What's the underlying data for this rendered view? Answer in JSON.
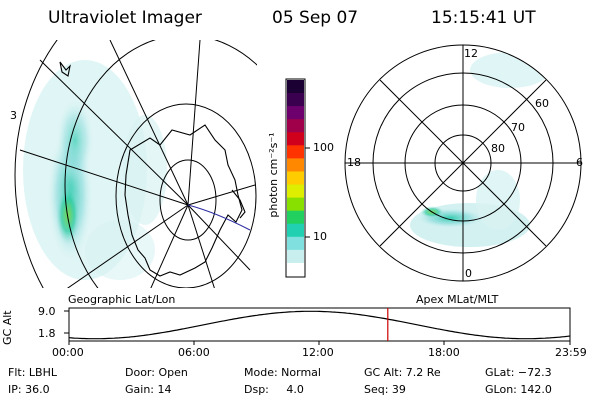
{
  "header": {
    "instrument": "Ultraviolet Imager",
    "date": "05 Sep 07",
    "time": "15:15:41 UT"
  },
  "geo_panel": {
    "label": "Geographic Lat/Lon",
    "corner_mark": "3"
  },
  "apex_panel": {
    "label": "Apex MLat/MLT",
    "mlt_labels": [
      "12",
      "18",
      "6",
      "0"
    ],
    "mlat_labels": [
      "60",
      "70",
      "80"
    ]
  },
  "colorbar": {
    "unit_label": "photon cm⁻²s⁻¹",
    "ticks": [
      {
        "label": "100",
        "value": 100
      },
      {
        "label": "10",
        "value": 10
      }
    ],
    "scale": "log",
    "colors": [
      "#1a0033",
      "#3a004f",
      "#6e006e",
      "#a0004a",
      "#d0001c",
      "#ff3300",
      "#ff8800",
      "#ffcc00",
      "#ddee00",
      "#88e000",
      "#22d060",
      "#20d0b0",
      "#80e0e0",
      "#c8eeee",
      "#ffffff"
    ]
  },
  "altitude_plot": {
    "ylabel": "GC Alt",
    "yticks": [
      "9.0",
      "1.8"
    ],
    "xticks": [
      "00:00",
      "06:00",
      "12:00",
      "18:00",
      "23:59"
    ],
    "current_time_marker": "15:15:41",
    "marker_color": "#cc0000"
  },
  "info": {
    "filter": "Flt: LBHL",
    "ip": "IP: 36.0",
    "door": "Door: Open",
    "gain": "Gain: 14",
    "mode": "Mode: Normal",
    "dsp": "Dsp:     4.0",
    "gc_alt": "GC Alt: 7.2 Re",
    "seq": "Seq: 39",
    "glat": "GLat: −72.3",
    "glon": "GLon: 142.0"
  }
}
